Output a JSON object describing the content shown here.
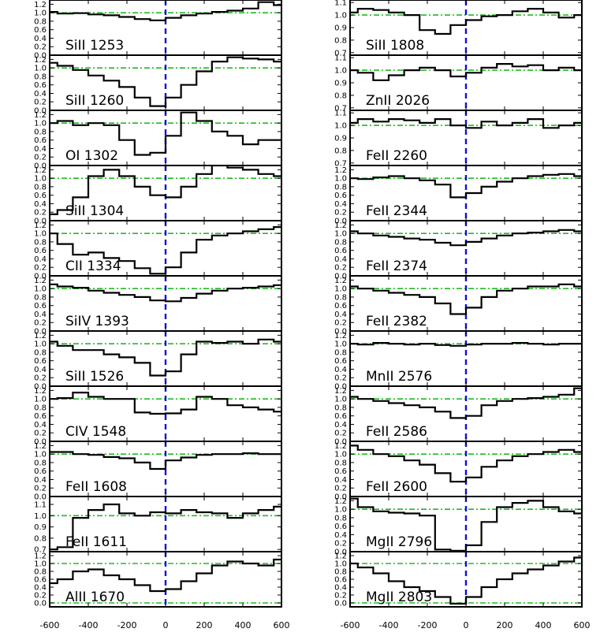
{
  "chart_data": {
    "type": "line",
    "style": "stepped",
    "layout": {
      "columns": 2,
      "rows": 11
    },
    "xlim": [
      -600,
      600
    ],
    "x_ticks": [
      -600,
      -400,
      -200,
      0,
      200,
      400,
      600
    ],
    "x_tick_labels": [
      "-600",
      "-400",
      "-200",
      "0",
      "200",
      "400",
      "600"
    ],
    "x_tick_labels_right": [
      "-600",
      "-400",
      "-200",
      "0",
      "200",
      "400",
      "600"
    ],
    "zero_marker": {
      "x": 0,
      "style": "dashed",
      "color": "#1010dd"
    },
    "reference_lines": {
      "y": [
        0.0,
        1.0
      ],
      "style": "dash-dot",
      "color": "#22bb22"
    },
    "x": [
      -600,
      -520,
      -440,
      -360,
      -280,
      -200,
      -120,
      -40,
      40,
      120,
      200,
      280,
      360,
      440,
      520,
      600
    ],
    "panels": [
      {
        "column": 0,
        "label": "SiII 1253",
        "ylim": [
          0.0,
          1.3
        ],
        "y_ticks": [
          0.0,
          0.2,
          0.4,
          0.6,
          0.8,
          1.0,
          1.2
        ],
        "y_tick_labels": [
          "0.0",
          "0.2",
          "0.4",
          "0.6",
          "0.8",
          "1.0",
          "1.2"
        ],
        "y": [
          1.02,
          0.98,
          0.99,
          0.96,
          0.94,
          0.9,
          0.85,
          0.82,
          0.88,
          0.94,
          0.98,
          1.02,
          1.05,
          1.1,
          1.25,
          1.18
        ]
      },
      {
        "column": 0,
        "label": "SiII 1260",
        "ylim": [
          0.0,
          1.3
        ],
        "y_ticks": [
          0.0,
          0.2,
          0.4,
          0.6,
          0.8,
          1.0,
          1.2
        ],
        "y_tick_labels": [
          "0.0",
          "0.2",
          "0.4",
          "0.6",
          "0.8",
          "1.0",
          "1.2"
        ],
        "y": [
          1.12,
          1.05,
          0.95,
          0.82,
          0.7,
          0.55,
          0.3,
          0.1,
          0.3,
          0.6,
          0.92,
          1.15,
          1.25,
          1.22,
          1.2,
          1.15
        ]
      },
      {
        "column": 0,
        "label": "OI 1302",
        "ylim": [
          0.0,
          1.3
        ],
        "y_ticks": [
          0.0,
          0.2,
          0.4,
          0.6,
          0.8,
          1.0,
          1.2
        ],
        "y_tick_labels": [
          "0.0",
          "0.2",
          "0.4",
          "0.6",
          "0.8",
          "1.0",
          "1.2"
        ],
        "y": [
          1.0,
          1.05,
          0.95,
          1.0,
          0.95,
          0.6,
          0.25,
          0.3,
          0.7,
          1.25,
          1.05,
          0.8,
          0.7,
          0.5,
          0.6,
          0.6
        ]
      },
      {
        "column": 0,
        "label": "SiII 1304",
        "ylim": [
          0.0,
          1.3
        ],
        "y_ticks": [
          0.0,
          0.2,
          0.4,
          0.6,
          0.8,
          1.0,
          1.2
        ],
        "y_tick_labels": [
          "0.0",
          "0.2",
          "0.4",
          "0.6",
          "0.8",
          "1.0",
          "1.2"
        ],
        "y": [
          0.15,
          0.25,
          0.55,
          1.05,
          1.2,
          1.05,
          0.8,
          0.6,
          0.55,
          0.8,
          1.1,
          1.3,
          1.25,
          1.2,
          1.1,
          1.05
        ]
      },
      {
        "column": 0,
        "label": "CII 1334",
        "ylim": [
          0.0,
          1.3
        ],
        "y_ticks": [
          0.0,
          0.2,
          0.4,
          0.6,
          0.8,
          1.0,
          1.2
        ],
        "y_tick_labels": [
          "0.0",
          "0.2",
          "0.4",
          "0.6",
          "0.8",
          "1.0",
          "1.2"
        ],
        "y": [
          1.0,
          0.75,
          0.5,
          0.55,
          0.42,
          0.35,
          0.18,
          0.05,
          0.2,
          0.55,
          0.85,
          0.95,
          1.0,
          1.05,
          1.1,
          1.15
        ]
      },
      {
        "column": 0,
        "label": "SiIV 1393",
        "ylim": [
          0.0,
          1.3
        ],
        "y_ticks": [
          0.0,
          0.2,
          0.4,
          0.6,
          0.8,
          1.0,
          1.2
        ],
        "y_tick_labels": [
          "0.0",
          "0.2",
          "0.4",
          "0.6",
          "0.8",
          "1.0",
          "1.2"
        ],
        "y": [
          1.1,
          1.05,
          1.02,
          0.95,
          0.9,
          0.85,
          0.8,
          0.72,
          0.7,
          0.78,
          0.88,
          0.95,
          1.0,
          1.02,
          1.05,
          1.08
        ]
      },
      {
        "column": 0,
        "label": "SiII 1526",
        "ylim": [
          0.0,
          1.3
        ],
        "y_ticks": [
          0.0,
          0.2,
          0.4,
          0.6,
          0.8,
          1.0,
          1.2
        ],
        "y_tick_labels": [
          "0.0",
          "0.2",
          "0.4",
          "0.6",
          "0.8",
          "1.0",
          "1.2"
        ],
        "y": [
          1.05,
          0.95,
          0.85,
          0.85,
          0.75,
          0.68,
          0.55,
          0.25,
          0.35,
          0.75,
          1.05,
          1.02,
          1.05,
          1.0,
          1.1,
          1.05
        ]
      },
      {
        "column": 0,
        "label": "CIV 1548",
        "ylim": [
          0.0,
          1.3
        ],
        "y_ticks": [
          0.0,
          0.2,
          0.4,
          0.6,
          0.8,
          1.0,
          1.2
        ],
        "y_tick_labels": [
          "0.0",
          "0.2",
          "0.4",
          "0.6",
          "0.8",
          "1.0",
          "1.2"
        ],
        "y": [
          1.0,
          1.02,
          1.15,
          1.05,
          1.0,
          1.0,
          0.68,
          0.65,
          0.66,
          0.75,
          1.05,
          1.0,
          0.85,
          0.8,
          0.75,
          0.7
        ]
      },
      {
        "column": 0,
        "label": "FeII 1608",
        "ylim": [
          0.0,
          1.3
        ],
        "y_ticks": [
          0.0,
          0.2,
          0.4,
          0.6,
          0.8,
          1.0,
          1.2
        ],
        "y_tick_labels": [
          "0.0",
          "0.2",
          "0.4",
          "0.6",
          "0.8",
          "1.0",
          "1.2"
        ],
        "y": [
          1.05,
          1.05,
          1.0,
          0.98,
          0.93,
          0.9,
          0.8,
          0.65,
          0.85,
          0.92,
          0.98,
          1.0,
          1.0,
          1.02,
          1.0,
          1.0
        ]
      },
      {
        "column": 0,
        "label": "FeII 1611",
        "ylim": [
          0.68,
          1.17
        ],
        "y_ticks": [
          0.7,
          0.8,
          0.9,
          1.0,
          1.1
        ],
        "y_tick_labels": [
          "0.7",
          "0.8",
          "0.9",
          "1.0",
          "1.1"
        ],
        "y": [
          0.7,
          0.72,
          0.98,
          1.05,
          1.1,
          1.02,
          1.0,
          1.03,
          1.02,
          1.05,
          1.03,
          1.02,
          0.98,
          1.02,
          1.05,
          1.08
        ]
      },
      {
        "column": 0,
        "label": "AlII 1670",
        "ylim": [
          -0.1,
          1.3
        ],
        "y_ticks": [
          0.0,
          0.2,
          0.4,
          0.6,
          0.8,
          1.0,
          1.2
        ],
        "y_tick_labels": [
          "0.0",
          "0.2",
          "0.4",
          "0.6",
          "0.8",
          "1.0",
          "1.2"
        ],
        "y": [
          0.5,
          0.6,
          0.8,
          0.85,
          0.7,
          0.6,
          0.45,
          0.3,
          0.35,
          0.55,
          0.75,
          0.95,
          1.05,
          1.0,
          0.95,
          1.1
        ]
      },
      {
        "column": 1,
        "label": "SiII 1808",
        "ylim": [
          0.68,
          1.12
        ],
        "y_ticks": [
          0.7,
          0.8,
          0.9,
          1.0,
          1.1
        ],
        "y_tick_labels": [
          "0.7",
          "0.8",
          "0.9",
          "1.0",
          "1.1"
        ],
        "y": [
          1.02,
          1.05,
          1.04,
          1.02,
          1.0,
          0.88,
          0.85,
          0.92,
          0.96,
          0.99,
          1.0,
          1.03,
          1.05,
          1.02,
          0.98,
          1.0
        ]
      },
      {
        "column": 1,
        "label": "ZnII 2026",
        "ylim": [
          0.68,
          1.12
        ],
        "y_ticks": [
          0.7,
          0.8,
          0.9,
          1.0,
          1.1
        ],
        "y_tick_labels": [
          "0.7",
          "0.8",
          "0.9",
          "1.0",
          "1.1"
        ],
        "y": [
          1.0,
          0.98,
          0.92,
          0.96,
          1.0,
          1.02,
          1.0,
          0.95,
          0.98,
          1.02,
          1.05,
          1.03,
          1.04,
          1.0,
          1.02,
          1.0
        ]
      },
      {
        "column": 1,
        "label": "FeII 2260",
        "ylim": [
          0.68,
          1.12
        ],
        "y_ticks": [
          0.7,
          0.8,
          0.9,
          1.0,
          1.1
        ],
        "y_tick_labels": [
          "0.7",
          "0.8",
          "0.9",
          "1.0",
          "1.1"
        ],
        "y": [
          1.02,
          1.05,
          1.03,
          1.05,
          1.04,
          1.02,
          1.05,
          1.0,
          0.98,
          1.03,
          1.0,
          1.02,
          1.05,
          0.98,
          1.0,
          1.02
        ]
      },
      {
        "column": 1,
        "label": "FeII 2344",
        "ylim": [
          0.0,
          1.3
        ],
        "y_ticks": [
          0.0,
          0.2,
          0.4,
          0.6,
          0.8,
          1.0,
          1.2
        ],
        "y_tick_labels": [
          "0.0",
          "0.2",
          "0.4",
          "0.6",
          "0.8",
          "1.0",
          "1.2"
        ],
        "y": [
          1.0,
          0.98,
          1.02,
          1.05,
          1.0,
          0.95,
          0.85,
          0.55,
          0.65,
          0.8,
          0.92,
          1.0,
          1.05,
          1.08,
          1.1,
          1.05
        ]
      },
      {
        "column": 1,
        "label": "FeII 2374",
        "ylim": [
          0.0,
          1.3
        ],
        "y_ticks": [
          0.0,
          0.2,
          0.4,
          0.6,
          0.8,
          1.0,
          1.2
        ],
        "y_tick_labels": [
          "0.0",
          "0.2",
          "0.4",
          "0.6",
          "0.8",
          "1.0",
          "1.2"
        ],
        "y": [
          1.05,
          1.0,
          0.95,
          0.92,
          0.88,
          0.85,
          0.78,
          0.72,
          0.8,
          0.88,
          0.95,
          1.0,
          1.02,
          1.05,
          1.08,
          1.05
        ]
      },
      {
        "column": 1,
        "label": "FeII 2382",
        "ylim": [
          0.0,
          1.3
        ],
        "y_ticks": [
          0.0,
          0.2,
          0.4,
          0.6,
          0.8,
          1.0,
          1.2
        ],
        "y_tick_labels": [
          "0.0",
          "0.2",
          "0.4",
          "0.6",
          "0.8",
          "1.0",
          "1.2"
        ],
        "y": [
          1.05,
          1.0,
          0.95,
          0.9,
          0.85,
          0.8,
          0.65,
          0.4,
          0.55,
          0.8,
          0.95,
          1.0,
          1.05,
          1.05,
          1.1,
          1.05
        ]
      },
      {
        "column": 1,
        "label": "MnII 2576",
        "ylim": [
          0.0,
          1.3
        ],
        "y_ticks": [
          0.0,
          0.2,
          0.4,
          0.6,
          0.8,
          1.0,
          1.2
        ],
        "y_tick_labels": [
          "0.0",
          "0.2",
          "0.4",
          "0.6",
          "0.8",
          "1.0",
          "1.2"
        ],
        "y": [
          1.0,
          0.98,
          1.02,
          1.0,
          0.98,
          1.0,
          0.97,
          0.95,
          0.98,
          1.0,
          1.0,
          1.02,
          1.0,
          0.98,
          1.0,
          1.0
        ]
      },
      {
        "column": 1,
        "label": "FeII 2586",
        "ylim": [
          0.0,
          1.3
        ],
        "y_ticks": [
          0.0,
          0.2,
          0.4,
          0.6,
          0.8,
          1.0,
          1.2
        ],
        "y_tick_labels": [
          "0.0",
          "0.2",
          "0.4",
          "0.6",
          "0.8",
          "1.0",
          "1.2"
        ],
        "y": [
          1.05,
          1.0,
          0.95,
          0.9,
          0.85,
          0.8,
          0.7,
          0.55,
          0.6,
          0.85,
          0.95,
          1.0,
          1.02,
          1.05,
          1.1,
          1.25
        ]
      },
      {
        "column": 1,
        "label": "FeII 2600",
        "ylim": [
          0.0,
          1.3
        ],
        "y_ticks": [
          0.0,
          0.2,
          0.4,
          0.6,
          0.8,
          1.0,
          1.2
        ],
        "y_tick_labels": [
          "0.0",
          "0.2",
          "0.4",
          "0.6",
          "0.8",
          "1.0",
          "1.2"
        ],
        "y": [
          1.2,
          1.1,
          1.0,
          0.95,
          0.85,
          0.75,
          0.55,
          0.35,
          0.45,
          0.7,
          0.85,
          0.95,
          1.0,
          1.05,
          1.1,
          1.05
        ]
      },
      {
        "column": 1,
        "label": "MgII 2796",
        "ylim": [
          0.0,
          1.3
        ],
        "y_ticks": [
          0.0,
          0.2,
          0.4,
          0.6,
          0.8,
          1.0,
          1.2
        ],
        "y_tick_labels": [
          "0.0",
          "0.2",
          "0.4",
          "0.6",
          "0.8",
          "1.0",
          "1.2"
        ],
        "y": [
          1.25,
          1.05,
          0.95,
          0.92,
          0.9,
          0.85,
          0.05,
          0.02,
          0.15,
          0.7,
          1.05,
          1.15,
          1.2,
          1.05,
          0.95,
          0.9
        ]
      },
      {
        "column": 1,
        "label": "MgII 2803",
        "ylim": [
          -0.1,
          1.3
        ],
        "y_ticks": [
          0.0,
          0.2,
          0.4,
          0.6,
          0.8,
          1.0,
          1.2
        ],
        "y_tick_labels": [
          "0.0",
          "0.2",
          "0.4",
          "0.6",
          "0.8",
          "1.0",
          "1.2"
        ],
        "y": [
          1.0,
          0.9,
          0.75,
          0.55,
          0.4,
          0.3,
          0.15,
          -0.02,
          0.15,
          0.4,
          0.6,
          0.75,
          0.85,
          0.95,
          1.05,
          1.15
        ]
      }
    ]
  }
}
